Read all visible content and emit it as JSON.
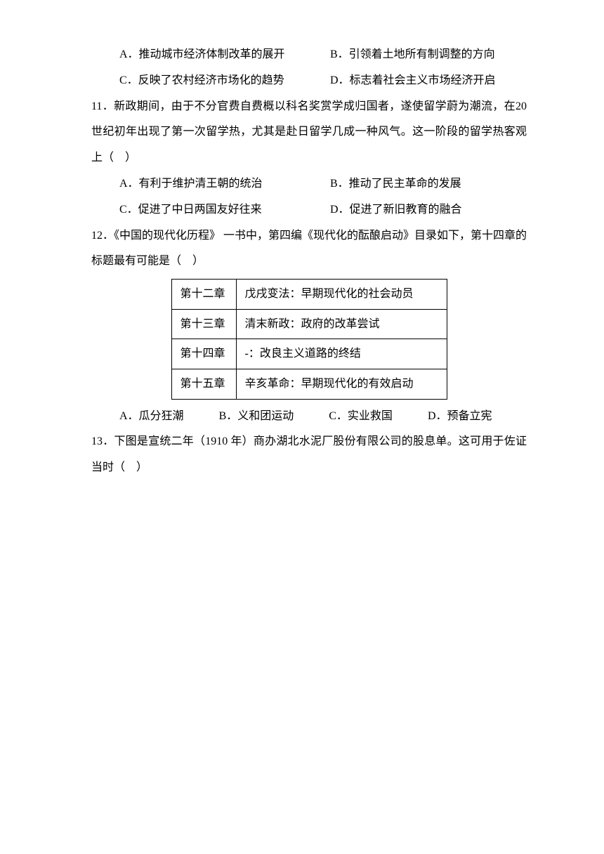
{
  "q10_options": {
    "a": "A．推动城市经济体制改革的展开",
    "b": "B．引领着土地所有制调整的方向",
    "c": "C．反映了农村经济市场化的趋势",
    "d": "D．标志着社会主义市场经济开启"
  },
  "q11": {
    "text": "11．新政期间，由于不分官费自费概以科名奖赏学成归国者，遂使留学蔚为潮流，在20 世纪初年出现了第一次留学热，尤其是赴日留学几成一种风气。这一阶段的留学热客观上（　）",
    "a": "A．有利于维护清王朝的统治",
    "b": "B．推动了民主革命的发展",
    "c": "C．促进了中日两国友好往来",
    "d": "D．促进了新旧教育的融合"
  },
  "q12": {
    "text": "12．《中国的现代化历程》 一书中，第四编《现代化的酝酿启动》目录如下，第十四章的标题最有可能是（　）",
    "table": {
      "rows": [
        {
          "ch": "第十二章",
          "title": "戊戌变法：早期现代化的社会动员"
        },
        {
          "ch": "第十三章",
          "title": "清末新政：政府的改革尝试"
        },
        {
          "ch": "第十四章",
          "title": "-：改良主义道路的终结"
        },
        {
          "ch": "第十五章",
          "title": "辛亥革命：早期现代化的有效启动"
        }
      ]
    },
    "a": "A．瓜分狂潮",
    "b": "B．义和团运动",
    "c": "C．实业救国",
    "d": "D．预备立宪"
  },
  "q13": {
    "text": "13．下图是宣统二年（1910 年）商办湖北水泥厂股份有限公司的股息单。这可用于佐证当时（　）"
  }
}
